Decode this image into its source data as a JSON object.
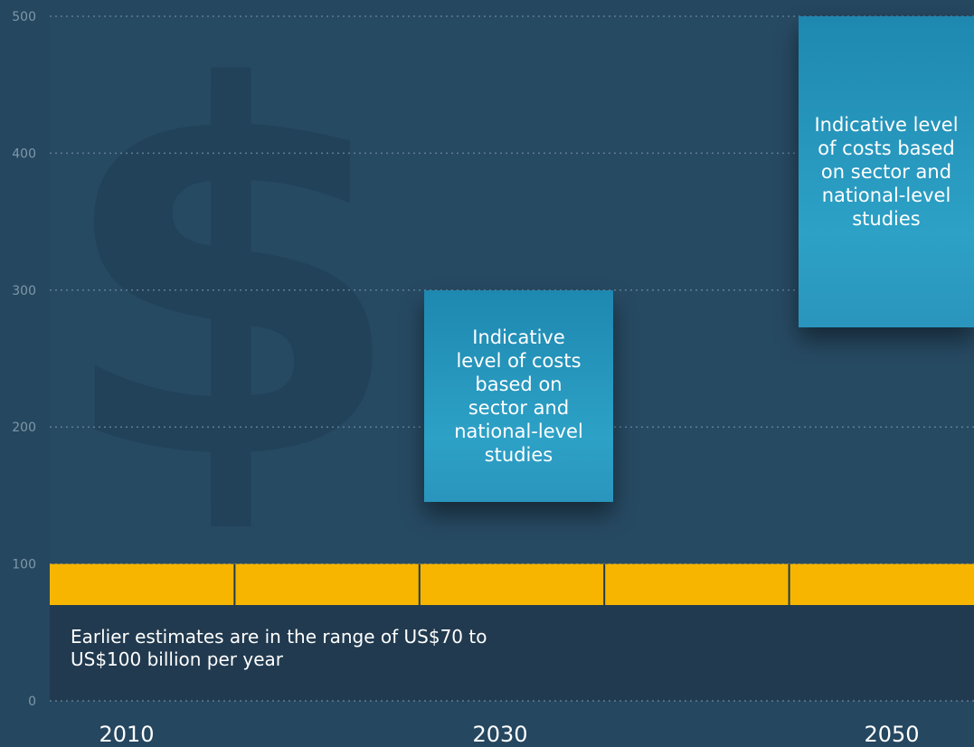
{
  "chart_data": {
    "type": "bar",
    "title": "",
    "xlabel": "",
    "ylabel": "",
    "ylim": [
      0,
      500
    ],
    "yticks": [
      0,
      100,
      200,
      300,
      400,
      500
    ],
    "grid": true,
    "x_labels": [
      "2010",
      "2030",
      "2050"
    ],
    "series": [
      {
        "values": [
          100,
          100,
          100,
          100,
          100
        ],
        "lower": 70,
        "color": "#f7b500",
        "note": "Earlier estimates are in the range of US$70 to US$100 billion per year"
      }
    ],
    "annotations": [
      {
        "x_label": "2030",
        "range": [
          145,
          300
        ],
        "text": "Indicative level of costs based on sector and national-level studies",
        "color": "#2a9fc6"
      },
      {
        "x_label": "2050",
        "range": [
          273,
          500
        ],
        "text": "Indicative level of costs based on sector and national-level studies",
        "color": "#2a9fc6"
      }
    ],
    "background_icon": "dollar-sign-icon"
  }
}
